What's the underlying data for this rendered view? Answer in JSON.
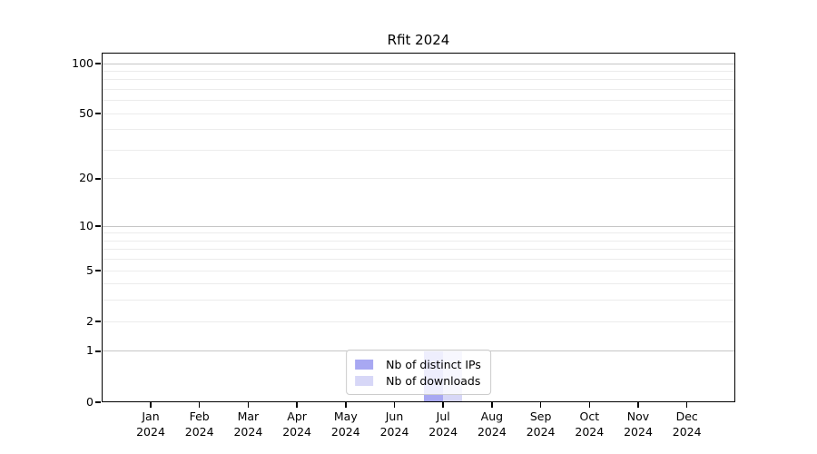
{
  "chart_data": {
    "type": "bar",
    "title": "Rfit 2024",
    "xlabel": "",
    "ylabel": "",
    "categories": [
      "Jan 2024",
      "Feb 2024",
      "Mar 2024",
      "Apr 2024",
      "May 2024",
      "Jun 2024",
      "Jul 2024",
      "Aug 2024",
      "Sep 2024",
      "Oct 2024",
      "Nov 2024",
      "Dec 2024"
    ],
    "series": [
      {
        "name": "Nb of distinct IPs",
        "color": "#a8a8f2",
        "values": [
          0,
          0,
          0,
          0,
          0,
          0,
          1,
          0,
          0,
          0,
          0,
          0
        ]
      },
      {
        "name": "Nb of downloads",
        "color": "#d7d7f7",
        "values": [
          0,
          0,
          0,
          0,
          0,
          0,
          1,
          0,
          0,
          0,
          0,
          0
        ]
      }
    ],
    "yscale": "log10(1+x)",
    "ylim": [
      0,
      100
    ],
    "y_ticks": [
      0,
      1,
      2,
      5,
      10,
      20,
      50,
      100
    ],
    "major_gridlines": [
      1,
      10,
      100
    ],
    "minor_gridlines": [
      2,
      3,
      4,
      5,
      6,
      7,
      8,
      9,
      20,
      30,
      40,
      50,
      60,
      70,
      80,
      90
    ],
    "grid": true,
    "legend_position": "lower center",
    "colors": {
      "grid_major": "#c6c6c6",
      "grid_minor": "#ececec",
      "axis": "#000000",
      "legend_border": "#cccccc",
      "background": "#ffffff"
    }
  }
}
